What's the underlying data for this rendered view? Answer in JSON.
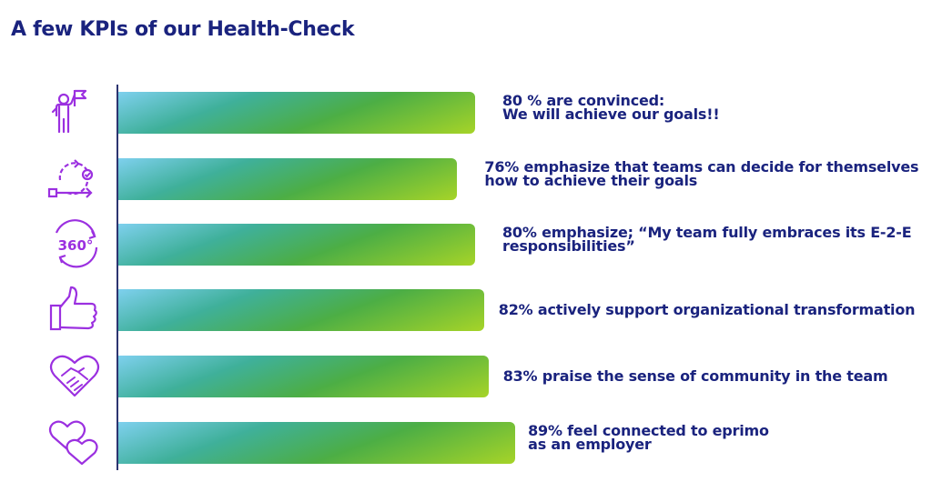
{
  "title": "A few KPIs of our Health-Check",
  "colors": {
    "title": "#1a237e",
    "label": "#1a237e",
    "icon": "#9b30e0",
    "axis": "#2c3470",
    "bar_gradient": [
      "#7ed0ee",
      "#3fb09a",
      "#4cae45",
      "#a6d428"
    ]
  },
  "chart_data": {
    "type": "bar",
    "orientation": "horizontal",
    "unit": "%",
    "title": "A few KPIs of our Health-Check",
    "xlim": [
      0,
      100
    ],
    "categories": [
      "80 % are convinced: We will achieve our goals!!",
      "76% emphasize that teams can decide for themselves how to achieve their goals",
      "80% emphasize; “My team fully embraces its E-2-E responsibilities”",
      "82% actively support organizational transformation",
      "83% praise the sense of community in the team",
      "89% feel connected to eprimo as an employer"
    ],
    "values": [
      80,
      76,
      80,
      82,
      83,
      89
    ],
    "grid": false,
    "legend": "none"
  },
  "rows": [
    {
      "value": 80,
      "icon": "goal-flag-person-icon",
      "lines": [
        "80 % are convinced:",
        "We will achieve our goals!!"
      ]
    },
    {
      "value": 76,
      "icon": "process-cycle-icon",
      "lines": [
        "76% emphasize that teams can decide for themselves",
        "how to achieve their goals"
      ]
    },
    {
      "value": 80,
      "icon": "360-degree-icon",
      "lines": [
        "80% emphasize; “My team fully embraces its E-2-E",
        "responsibilities”"
      ]
    },
    {
      "value": 82,
      "icon": "thumbs-up-icon",
      "lines": [
        "82% actively support organizational transformation"
      ]
    },
    {
      "value": 83,
      "icon": "handshake-heart-icon",
      "lines": [
        "83% praise the sense of community in the team"
      ]
    },
    {
      "value": 89,
      "icon": "two-hearts-icon",
      "lines": [
        "89% feel connected to eprimo",
        "as an employer"
      ]
    }
  ]
}
